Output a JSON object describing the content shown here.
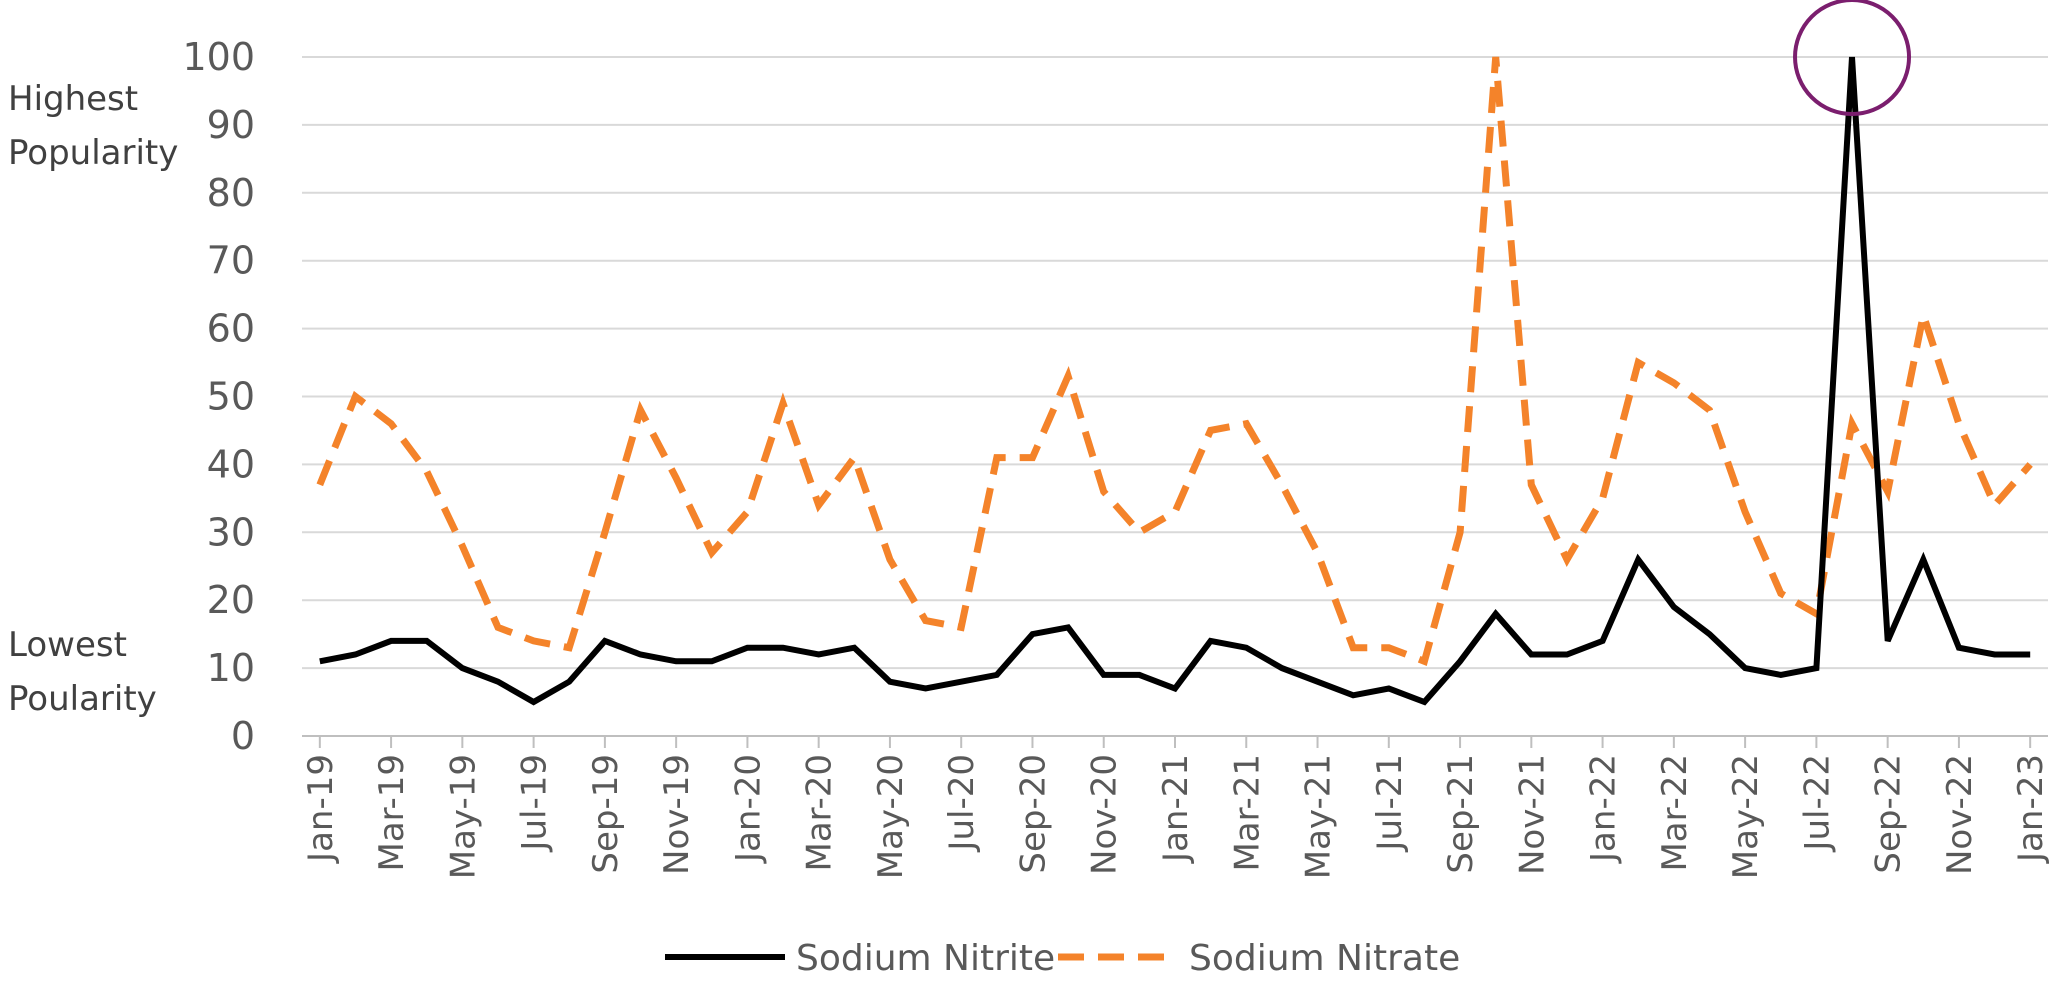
{
  "chart_data": {
    "type": "line",
    "title": "",
    "xlabel": "",
    "ylabel": "",
    "ylim": [
      0,
      100
    ],
    "yticks": [
      "0",
      "10",
      "20",
      "30",
      "40",
      "50",
      "60",
      "70",
      "80",
      "90",
      "100"
    ],
    "grid": "horizontal",
    "legend_position": "bottom",
    "x": [
      "Jan-19",
      "Feb-19",
      "Mar-19",
      "Apr-19",
      "May-19",
      "Jun-19",
      "Jul-19",
      "Aug-19",
      "Sep-19",
      "Oct-19",
      "Nov-19",
      "Dec-19",
      "Jan-20",
      "Feb-20",
      "Mar-20",
      "Apr-20",
      "May-20",
      "Jun-20",
      "Jul-20",
      "Aug-20",
      "Sep-20",
      "Oct-20",
      "Nov-20",
      "Dec-20",
      "Jan-21",
      "Feb-21",
      "Mar-21",
      "Apr-21",
      "May-21",
      "Jun-21",
      "Jul-21",
      "Aug-21",
      "Sep-21",
      "Oct-21",
      "Nov-21",
      "Dec-21",
      "Jan-22",
      "Feb-22",
      "Mar-22",
      "Apr-22",
      "May-22",
      "Jun-22",
      "Jul-22",
      "Aug-22",
      "Sep-22",
      "Oct-22",
      "Nov-22",
      "Dec-22",
      "Jan-23"
    ],
    "xtick_labels": [
      "Jan-19",
      "Mar-19",
      "May-19",
      "Jul-19",
      "Sep-19",
      "Nov-19",
      "Jan-20",
      "Mar-20",
      "May-20",
      "Jul-20",
      "Sep-20",
      "Nov-20",
      "Jan-21",
      "Mar-21",
      "May-21",
      "Jul-21",
      "Sep-21",
      "Nov-21",
      "Jan-22",
      "Mar-22",
      "May-22",
      "Jul-22",
      "Sep-22",
      "Nov-22",
      "Jan-23"
    ],
    "series": [
      {
        "name": "Sodium Nitrite",
        "color": "#000000",
        "style": "solid",
        "values": [
          11,
          12,
          14,
          14,
          10,
          8,
          5,
          8,
          14,
          12,
          11,
          11,
          13,
          13,
          12,
          13,
          8,
          7,
          8,
          9,
          15,
          16,
          9,
          9,
          7,
          14,
          13,
          10,
          8,
          6,
          7,
          5,
          11,
          18,
          12,
          12,
          14,
          26,
          19,
          15,
          10,
          9,
          10,
          100,
          14,
          26,
          13,
          12,
          12
        ]
      },
      {
        "name": "Sodium Nitrate",
        "color": "#F4832A",
        "style": "dashed",
        "values": [
          37,
          50,
          46,
          39,
          28,
          16,
          14,
          13,
          30,
          48,
          38,
          27,
          33,
          49,
          34,
          41,
          26,
          17,
          16,
          41,
          41,
          53,
          36,
          30,
          33,
          45,
          46,
          37,
          27,
          13,
          13,
          11,
          30,
          100,
          37,
          26,
          35,
          55,
          52,
          48,
          33,
          21,
          18,
          46,
          36,
          62,
          46,
          34,
          40
        ]
      }
    ],
    "annotations": {
      "top_label": "Highest Popularity",
      "top_label_lines": [
        "Highest",
        "Popularity"
      ],
      "bottom_label": "Lowest Poularity",
      "bottom_label_lines": [
        "Lowest",
        "Poularity"
      ],
      "highlight_circle": {
        "x": "Aug-22",
        "y": 100,
        "color": "#7B1E6E"
      }
    }
  }
}
